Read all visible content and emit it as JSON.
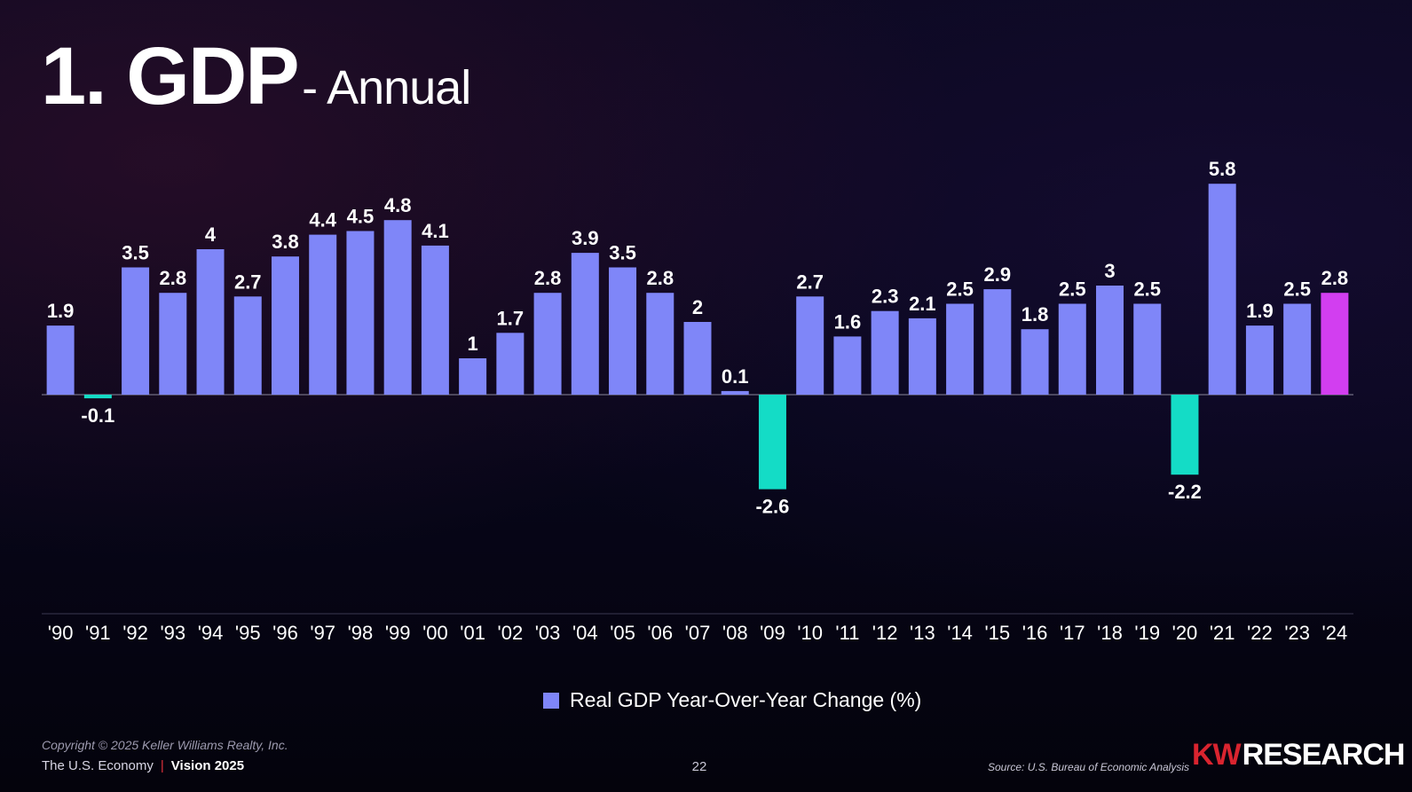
{
  "title": {
    "main": "1. GDP",
    "sub": "- Annual"
  },
  "chart_data": {
    "type": "bar",
    "title": "1. GDP - Annual",
    "categories": [
      "'90",
      "'91",
      "'92",
      "'93",
      "'94",
      "'95",
      "'96",
      "'97",
      "'98",
      "'99",
      "'00",
      "'01",
      "'02",
      "'03",
      "'04",
      "'05",
      "'06",
      "'07",
      "'08",
      "'09",
      "'10",
      "'11",
      "'12",
      "'13",
      "'14",
      "'15",
      "'16",
      "'17",
      "'18",
      "'19",
      "'20",
      "'21",
      "'22",
      "'23",
      "'24"
    ],
    "series": [
      {
        "name": "Real GDP Year-Over-Year Change (%)",
        "values": [
          1.9,
          -0.1,
          3.5,
          2.8,
          4,
          2.7,
          3.8,
          4.4,
          4.5,
          4.8,
          4.1,
          1,
          1.7,
          2.8,
          3.9,
          3.5,
          2.8,
          2,
          0.1,
          -2.6,
          2.7,
          1.6,
          2.3,
          2.1,
          2.5,
          2.9,
          1.8,
          2.5,
          3,
          2.5,
          -2.2,
          5.8,
          1.9,
          2.5,
          2.8
        ]
      }
    ],
    "data_labels": [
      "1.9",
      "-0.1",
      "3.5",
      "2.8",
      "4",
      "2.7",
      "3.8",
      "4.4",
      "4.5",
      "4.8",
      "4.1",
      "1",
      "1.7",
      "2.8",
      "3.9",
      "3.5",
      "2.8",
      "2",
      "0.1",
      "-2.6",
      "2.7",
      "1.6",
      "2.3",
      "2.1",
      "2.5",
      "2.9",
      "1.8",
      "2.5",
      "3",
      "2.5",
      "-2.2",
      "5.8",
      "1.9",
      "2.5",
      "2.8"
    ],
    "ylim": [
      -6,
      6
    ],
    "xlabel": "",
    "ylabel": "",
    "grid": false,
    "legend_position": "bottom-center",
    "highlight_category": "'24",
    "colors": {
      "positive": "#7f86f8",
      "negative": "#14dcc6",
      "highlight": "#d23ef0",
      "axis": "#8a889c"
    }
  },
  "legend": {
    "label": "Real GDP Year-Over-Year Change (%)",
    "color": "#7f86f8"
  },
  "footer": {
    "copyright": "Copyright © 2025 Keller Williams Realty, Inc.",
    "deck_title": "The U.S. Economy",
    "separator": "|",
    "vision": "Vision 2025",
    "page_number": "22",
    "source": "Source: U.S. Bureau of Economic Analysis",
    "logo_kw": "KW",
    "logo_research": "RESEARCH"
  }
}
